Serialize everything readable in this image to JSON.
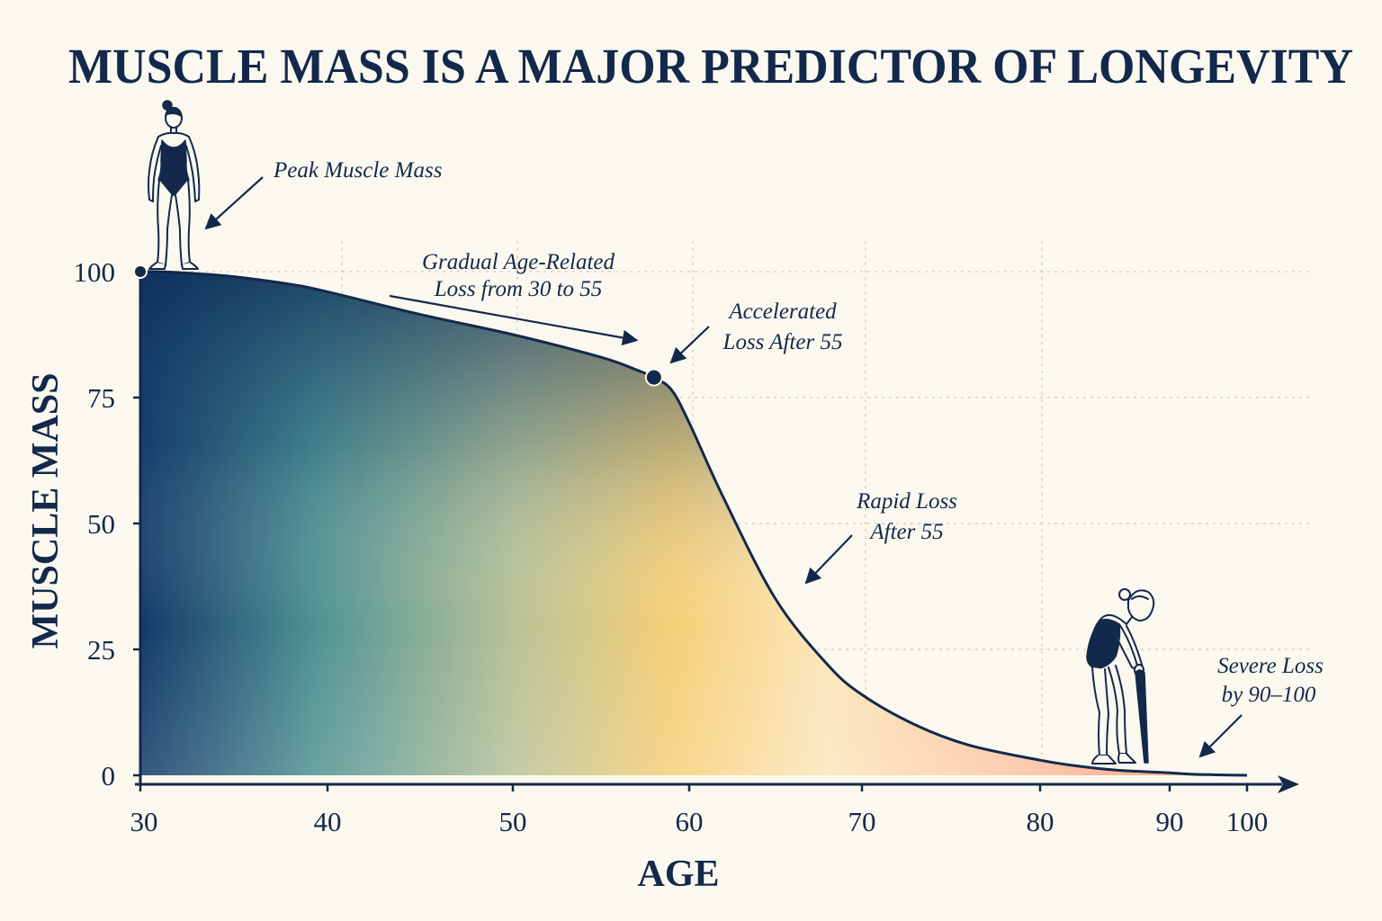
{
  "chart_data": {
    "type": "area",
    "title": "MUSCLE MASS IS A MAJOR PREDICTOR OF LONGEVITY",
    "xlabel": "AGE",
    "ylabel": "MUSCLE MASS",
    "x_ticks": [
      30,
      40,
      50,
      60,
      70,
      80,
      90,
      100
    ],
    "y_ticks": [
      0,
      25,
      50,
      75,
      100
    ],
    "xlim": [
      30,
      100
    ],
    "ylim": [
      0,
      100
    ],
    "grid": true,
    "series": [
      {
        "x": [
          30,
          31,
          33,
          35,
          38,
          40,
          45,
          50,
          55,
          57,
          58,
          59,
          60,
          62,
          65,
          68,
          70,
          73,
          76,
          80,
          83,
          86,
          90,
          93,
          96,
          100
        ],
        "y": [
          100,
          100,
          99.6,
          99,
          97.5,
          96,
          91.5,
          87.5,
          83,
          80.5,
          79,
          76.5,
          70,
          55,
          35,
          22,
          16,
          10,
          6,
          3,
          1.8,
          1,
          0.5,
          0.2,
          0.1,
          0
        ]
      }
    ],
    "markers": [
      {
        "x": 30,
        "y": 100
      },
      {
        "x": 58,
        "y": 79
      }
    ],
    "annotations": [
      "Peak Muscle Mass",
      "Gradual Age-Related",
      "Loss from 30 to 55",
      "Accelerated",
      "Loss After 55",
      "Rapid Loss",
      "After 55",
      "Severe Loss",
      "by 90–100"
    ]
  },
  "colors": {
    "ink": "#13294b",
    "background": "#fbf8ef",
    "gradient_start": "#0f2f5c",
    "gradient_mid_teal": "#4f9393",
    "gradient_mid_yellow": "#f6cf77",
    "gradient_end_salmon": "#f7886d",
    "grid": "#cfc9bb"
  },
  "icons": [
    "young-woman-figure-icon",
    "elderly-woman-with-cane-icon"
  ]
}
